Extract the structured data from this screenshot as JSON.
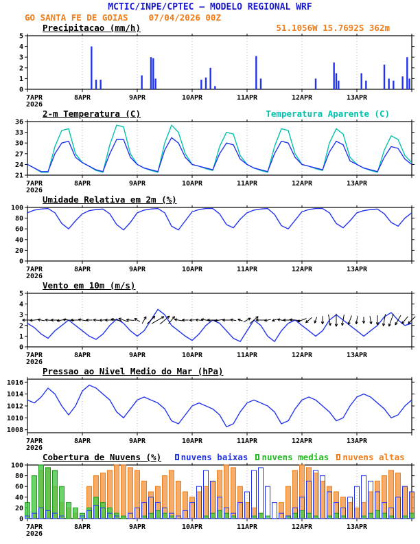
{
  "header": {
    "title": "MCTIC/INPE/CPTEC — MODELO REGIONAL WRF",
    "subtitle": "GO SANTA FE DE GOIAS    07/04/2026 00Z"
  },
  "x_axis": {
    "tick_labels": [
      "7APR",
      "8APR",
      "9APR",
      "10APR",
      "11APR",
      "12APR",
      "13APR"
    ],
    "year_label": "2026",
    "hours_total": 168,
    "hours_per_tick": 24
  },
  "colors": {
    "header_blue": "#1a1acd",
    "orange": "#ef7d1a",
    "line_blue": "#2233ee",
    "cyan": "#00c2ae",
    "green": "#22bb22",
    "grid": "#b0b0b0"
  },
  "chart_data": [
    {
      "id": "precip",
      "type": "bar",
      "title": "Precipitacao (mm/h)",
      "right_label": "51.1056W 15.7692S 362m",
      "ylim": [
        0,
        5
      ],
      "yticks": [
        0,
        1,
        2,
        3,
        4,
        5
      ],
      "color": "#2233ee",
      "events": [
        {
          "t": 28,
          "v": 4.0
        },
        {
          "t": 30,
          "v": 0.9
        },
        {
          "t": 32,
          "v": 0.9
        },
        {
          "t": 50,
          "v": 1.3
        },
        {
          "t": 54,
          "v": 3.0
        },
        {
          "t": 55,
          "v": 2.9
        },
        {
          "t": 56,
          "v": 1.0
        },
        {
          "t": 76,
          "v": 0.9
        },
        {
          "t": 78,
          "v": 1.1
        },
        {
          "t": 80,
          "v": 2.0
        },
        {
          "t": 82,
          "v": 0.3
        },
        {
          "t": 100,
          "v": 3.1
        },
        {
          "t": 102,
          "v": 1.0
        },
        {
          "t": 126,
          "v": 1.0
        },
        {
          "t": 134,
          "v": 2.5
        },
        {
          "t": 135,
          "v": 1.5
        },
        {
          "t": 136,
          "v": 0.8
        },
        {
          "t": 146,
          "v": 1.5
        },
        {
          "t": 148,
          "v": 0.8
        },
        {
          "t": 156,
          "v": 2.3
        },
        {
          "t": 158,
          "v": 1.0
        },
        {
          "t": 160,
          "v": 0.8
        },
        {
          "t": 164,
          "v": 1.2
        },
        {
          "t": 166,
          "v": 3.0
        },
        {
          "t": 167,
          "v": 1.0
        }
      ]
    },
    {
      "id": "temp2m",
      "type": "line",
      "title": "2-m Temperatura (C)",
      "right_label": "Temperatura Aparente (C)",
      "ylim": [
        21,
        36
      ],
      "yticks": [
        21,
        24,
        27,
        30,
        33,
        36
      ],
      "step_hours": 3,
      "series": [
        {
          "name": "Temperatura Aparente (C)",
          "color": "#00c2ae",
          "values": [
            24,
            23,
            21.8,
            21.8,
            29,
            33.5,
            34,
            27,
            24.5,
            23.5,
            22.3,
            21.8,
            29.5,
            35,
            34.5,
            27,
            24,
            23,
            22.3,
            21.8,
            30,
            35,
            33,
            27,
            24,
            23.5,
            22.8,
            22.3,
            29,
            33,
            32.5,
            26.5,
            24,
            23,
            22.3,
            21.8,
            29,
            34,
            33.5,
            27,
            24,
            23.5,
            22.8,
            22.3,
            30,
            34,
            32.5,
            26,
            24,
            23,
            22.3,
            21.8,
            28,
            32,
            31,
            26.5,
            24.5
          ]
        },
        {
          "name": "2-m Temperatura (C)",
          "color": "#2233ee",
          "values": [
            24,
            23,
            22,
            22,
            27,
            30,
            30.5,
            26,
            24.5,
            23.5,
            22.5,
            22,
            27,
            31,
            31,
            26,
            24,
            23,
            22.5,
            22,
            28,
            31.5,
            30,
            26,
            24,
            23.5,
            23,
            22.5,
            27,
            30,
            29.5,
            25.5,
            24,
            23,
            22.5,
            22,
            27,
            30.5,
            30,
            26,
            24,
            23.5,
            23,
            22.5,
            27.5,
            30.5,
            29.5,
            25,
            24,
            23,
            22.5,
            22,
            26,
            29,
            28.5,
            25.5,
            24
          ]
        }
      ]
    },
    {
      "id": "rh2m",
      "type": "line",
      "title": "Umidade Relativa em 2m (%)",
      "ylim": [
        0,
        100
      ],
      "yticks": [
        0,
        20,
        40,
        60,
        80,
        100
      ],
      "step_hours": 3,
      "series": [
        {
          "name": "Umidade Relativa",
          "color": "#2233ee",
          "values": [
            90,
            95,
            97,
            98,
            90,
            70,
            60,
            75,
            88,
            94,
            96,
            97,
            88,
            68,
            58,
            72,
            90,
            95,
            97,
            98,
            90,
            65,
            58,
            75,
            92,
            96,
            98,
            98,
            88,
            68,
            62,
            78,
            90,
            95,
            97,
            98,
            87,
            66,
            60,
            76,
            92,
            96,
            98,
            98,
            90,
            70,
            62,
            75,
            90,
            94,
            96,
            97,
            88,
            72,
            65,
            80,
            90
          ]
        }
      ]
    },
    {
      "id": "wind10m",
      "type": "line",
      "title": "Vento em 10m (m/s)",
      "ylim": [
        0,
        5
      ],
      "yticks": [
        0,
        1,
        2,
        3,
        4,
        5
      ],
      "step_hours": 3,
      "arrow_level": 2.5,
      "series": [
        {
          "name": "Velocidade do vento",
          "color": "#2233ee",
          "values": [
            2.2,
            1.8,
            1.2,
            0.8,
            1.5,
            2.0,
            2.5,
            2.0,
            1.5,
            1.0,
            0.7,
            1.2,
            2.0,
            2.6,
            2.2,
            1.5,
            1.0,
            1.5,
            2.5,
            3.5,
            3.0,
            2.0,
            1.5,
            1.0,
            0.6,
            1.2,
            2.0,
            2.5,
            2.2,
            1.5,
            0.8,
            0.5,
            1.5,
            2.5,
            2.0,
            1.0,
            0.5,
            1.5,
            2.2,
            2.5,
            2.0,
            1.5,
            1.0,
            1.5,
            2.5,
            3.0,
            2.5,
            2.0,
            1.5,
            1.0,
            1.5,
            2.0,
            2.8,
            3.2,
            2.5,
            2.0,
            2.2
          ]
        }
      ],
      "arrow_dirs_deg": [
        180,
        185,
        170,
        175,
        180,
        190,
        175,
        180,
        170,
        180,
        175,
        185,
        180,
        170,
        160,
        175,
        150,
        60,
        45,
        30,
        40,
        50,
        170,
        180,
        185,
        175,
        170,
        180,
        190,
        180,
        170,
        160,
        30,
        40,
        180,
        190,
        200,
        170,
        180,
        175,
        200,
        220,
        250,
        270,
        280,
        270,
        260,
        250,
        260,
        270,
        280,
        270,
        260,
        250,
        240,
        230,
        225
      ]
    },
    {
      "id": "mslp",
      "type": "line",
      "title": "Pressao ao Nivel Medio do Mar (hPa)",
      "ylim": [
        1007.5,
        1016.5
      ],
      "yticks": [
        1008,
        1010,
        1012,
        1014,
        1016
      ],
      "step_hours": 3,
      "series": [
        {
          "name": "Pressao",
          "color": "#2233ee",
          "values": [
            1013,
            1012.5,
            1013.5,
            1015,
            1014,
            1012,
            1010.5,
            1012,
            1014.5,
            1015.5,
            1015,
            1014,
            1013,
            1011,
            1010,
            1011.5,
            1013,
            1013.5,
            1013,
            1012.5,
            1011.5,
            1009.5,
            1009,
            1010.5,
            1012,
            1012.5,
            1012,
            1011.5,
            1010.5,
            1008.5,
            1009,
            1011,
            1012.5,
            1013,
            1012.5,
            1012,
            1011,
            1009,
            1009.5,
            1011.5,
            1013,
            1013.5,
            1013,
            1012,
            1011,
            1009.5,
            1010,
            1012,
            1013.5,
            1014,
            1013.5,
            1012.5,
            1011.5,
            1010,
            1010.5,
            1012,
            1013
          ]
        }
      ]
    },
    {
      "id": "clouds",
      "type": "bar",
      "title": "Cobertura de Nuvens (%)",
      "ylim": [
        0,
        100
      ],
      "yticks": [
        0,
        20,
        40,
        60,
        80,
        100
      ],
      "step_hours": 3,
      "legend": [
        {
          "label": "nuvens baixas",
          "color": "#2233ee"
        },
        {
          "label": "nuvens medias",
          "color": "#22bb22"
        },
        {
          "label": "nuvens altas",
          "color": "#ef7d1a"
        }
      ],
      "series": [
        {
          "name": "nuvens altas",
          "color": "#ef7d1a",
          "fill": "rgba(240,146,60,0.75)",
          "values": [
            0,
            10,
            90,
            95,
            60,
            30,
            20,
            10,
            0,
            60,
            80,
            85,
            90,
            100,
            100,
            95,
            90,
            70,
            50,
            60,
            80,
            90,
            70,
            50,
            40,
            50,
            60,
            70,
            90,
            100,
            95,
            60,
            30,
            20,
            10,
            0,
            0,
            30,
            60,
            90,
            100,
            95,
            85,
            70,
            60,
            50,
            40,
            30,
            20,
            30,
            50,
            70,
            80,
            90,
            85,
            60,
            50
          ]
        },
        {
          "name": "nuvens medias",
          "color": "#1a9a1a",
          "fill": "rgba(70,200,70,0.8)",
          "values": [
            30,
            80,
            100,
            95,
            90,
            60,
            30,
            20,
            10,
            20,
            40,
            30,
            20,
            10,
            5,
            0,
            0,
            5,
            10,
            15,
            10,
            5,
            0,
            0,
            0,
            0,
            5,
            10,
            15,
            10,
            5,
            0,
            0,
            5,
            10,
            5,
            0,
            0,
            5,
            10,
            15,
            10,
            5,
            0,
            5,
            10,
            5,
            0,
            0,
            5,
            10,
            15,
            10,
            5,
            0,
            5,
            10
          ]
        },
        {
          "name": "nuvens baixas",
          "color": "#2233ee",
          "fill": "none",
          "values": [
            5,
            10,
            20,
            15,
            10,
            5,
            0,
            0,
            5,
            15,
            25,
            20,
            10,
            5,
            0,
            10,
            20,
            30,
            40,
            30,
            20,
            10,
            5,
            15,
            30,
            60,
            90,
            70,
            40,
            20,
            10,
            30,
            50,
            90,
            95,
            60,
            30,
            10,
            5,
            20,
            40,
            70,
            90,
            80,
            50,
            30,
            20,
            40,
            60,
            80,
            70,
            50,
            30,
            20,
            40,
            60,
            50
          ]
        }
      ]
    }
  ]
}
